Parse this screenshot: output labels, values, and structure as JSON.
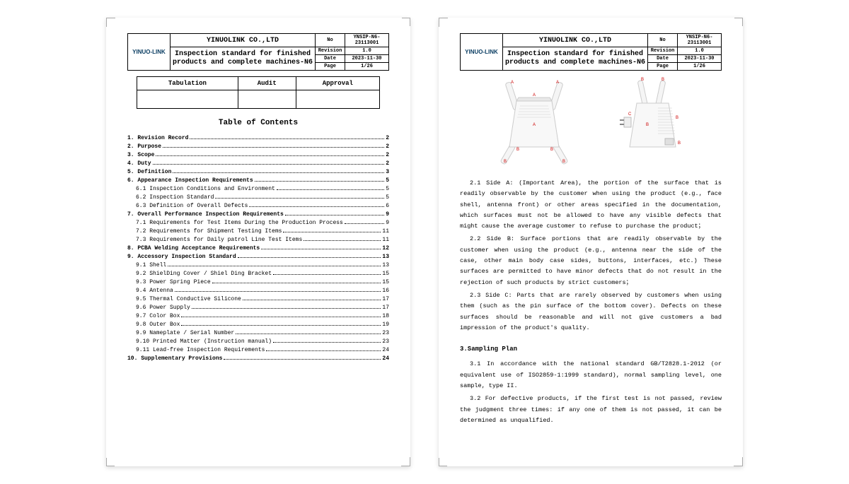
{
  "header": {
    "logo": "YINUO-LINK",
    "company": "YINUOLINK CO.,LTD",
    "subtitle": "Inspection standard for finished products and complete machines-N6",
    "no_label": "No",
    "no_val": "YNSIP-N6-23113001",
    "rev_label": "Revision",
    "rev_val": "1.0",
    "date_label": "Date",
    "date_val": "2023-11-30",
    "page_label": "Page",
    "page_val": "1/26"
  },
  "approval": {
    "tabulation": "Tabulation",
    "audit": "Audit",
    "approval": "Approval"
  },
  "toc_title": "Table of Contents",
  "toc": [
    {
      "t": "1. Revision Record",
      "p": "2",
      "b": true
    },
    {
      "t": "2. Purpose",
      "p": "2",
      "b": true
    },
    {
      "t": "3. Scope",
      "p": " 2",
      "b": true
    },
    {
      "t": "4. Duty",
      "p": " 2",
      "b": true
    },
    {
      "t": "5. Definition",
      "p": "3",
      "b": true
    },
    {
      "t": "6. Appearance Inspection Requirements ",
      "p": "5",
      "b": true
    },
    {
      "t": "6.1 Inspection Conditions and Environment ",
      "p": " 5",
      "i": true
    },
    {
      "t": "6.2 Inspection Standard",
      "p": " 5",
      "i": true
    },
    {
      "t": "6.3 Definition of Overall Defects",
      "p": "6",
      "i": true
    },
    {
      "t": "7. Overall Performance Inspection Requirements",
      "p": " 9",
      "b": true
    },
    {
      "t": "7.1 Requirements for Test Items During the Production Process",
      "p": "9",
      "i": true
    },
    {
      "t": "7.2 Requirements for Shipment Testing Items",
      "p": "11",
      "i": true
    },
    {
      "t": "7.3 Requirements for Daily patrol Line Test Items",
      "p": " 11",
      "i": true
    },
    {
      "t": "8. PCBA Welding Acceptance Requirements",
      "p": " 12",
      "b": true
    },
    {
      "t": "9. Accessory Inspection Standard",
      "p": "13",
      "b": true
    },
    {
      "t": "9.1 Shell",
      "p": "13",
      "i": true
    },
    {
      "t": "9.2 ShielDing Cover / Shiel Ding Bracket",
      "p": " 15",
      "i": true
    },
    {
      "t": "9.3 Power Spring Piece",
      "p": " 15",
      "i": true
    },
    {
      "t": "9.4 Antenna",
      "p": "16",
      "i": true
    },
    {
      "t": "9.5 Thermal Conductive Silicone",
      "p": "17",
      "i": true
    },
    {
      "t": "9.6 Power Supply",
      "p": " 17",
      "i": true
    },
    {
      "t": "9.7 Color Box",
      "p": "18",
      "i": true
    },
    {
      "t": "9.8 Outer Box",
      "p": "19",
      "i": true
    },
    {
      "t": "9.9 Nameplate / Serial Number",
      "p": "23",
      "i": true
    },
    {
      "t": "9.10 Printed Matter (Instruction manual)",
      "p": " 23",
      "i": true
    },
    {
      "t": "9.11 Lead-free Inspection Requirements",
      "p": " 24",
      "i": true
    },
    {
      "t": "10. Supplementary Provisions",
      "p": " 24",
      "b": true
    }
  ],
  "p2": {
    "para21": "2.1 Side A: (Important Area), the portion of the surface that is readily observable by the customer when using the product (e.g., face shell, antenna front) or other areas specified in the documentation, which surfaces must not be allowed to have any visible defects that might cause the average customer to refuse to purchase the product；",
    "para22": "2.2 Side B: Surface portions that are readily observable by the customer when using the product (e.g., antenna near the side of the case, other main body case sides, buttons, interfaces, etc.) These surfaces are permitted to have minor defects that do not result in the rejection of such products by strict customers；",
    "para23": "2.3 Side C: Parts that are rarely observed by customers when using them (such as the pin surface of the bottom cover). Defects on these surfaces should be reasonable and will not give customers a bad impression of the product's quality.",
    "sec3": "3.Sampling Plan",
    "para31": "3.1 In accordance with the national standard GB/T2828.1-2012 (or equivalent use of ISO2859-1:1999 standard), normal sampling level, one sample, type II.",
    "para32": "3.2 For defective products, if the first test is not passed, review the judgment three times: if any one of them is not passed, it can be determined as unqualified."
  },
  "colors": {
    "logo_color": "#0a3d62",
    "device_fill": "#f5f5f5",
    "device_stroke": "#cccccc",
    "marker_a": "#cc0000",
    "marker_b": "#cc0000"
  }
}
